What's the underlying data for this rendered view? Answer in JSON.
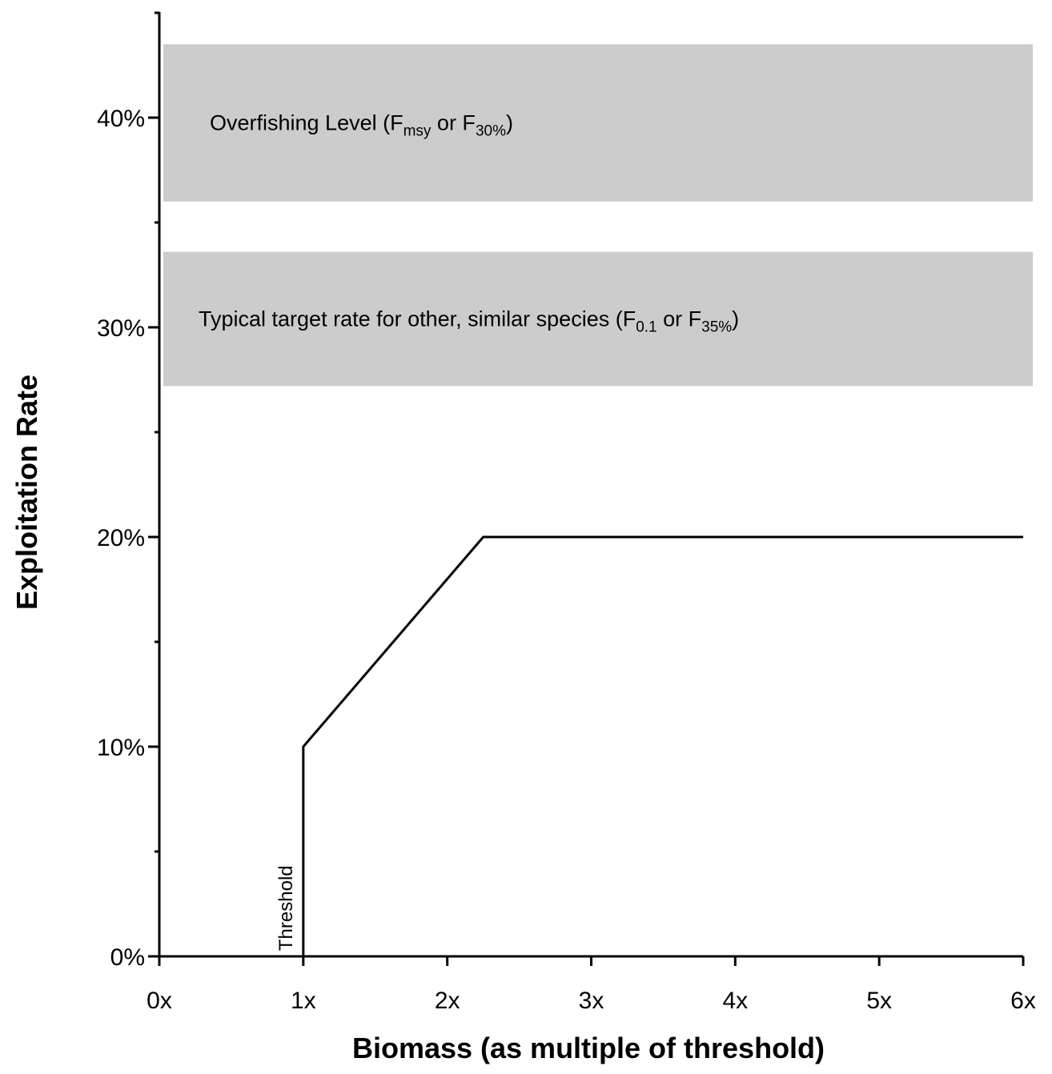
{
  "chart_data": {
    "type": "line",
    "xlabel": "Biomass (as multiple of threshold)",
    "ylabel": "Exploitation Rate",
    "x_ticks": [
      "0x",
      "1x",
      "2x",
      "3x",
      "4x",
      "5x",
      "6x"
    ],
    "x_tick_values": [
      0,
      1,
      2,
      3,
      4,
      5,
      6
    ],
    "y_ticks": [
      "0%",
      "10%",
      "20%",
      "30%",
      "40%"
    ],
    "y_tick_values": [
      0,
      10,
      20,
      30,
      40
    ],
    "y_minor_ticks": [
      5,
      15,
      25,
      35,
      45
    ],
    "xlim": [
      0,
      6
    ],
    "ylim": [
      0,
      45
    ],
    "grid": false,
    "series": [
      {
        "x": [
          1,
          1,
          2.25,
          6
        ],
        "y": [
          0,
          10,
          20,
          20
        ],
        "color": "#000000"
      }
    ],
    "bands": [
      {
        "y_range": [
          36,
          43.5
        ],
        "color": "#cccccc",
        "label_parts": [
          {
            "text": "Overfishing Level (F"
          },
          {
            "text": "msy",
            "sub": true
          },
          {
            "text": " or F"
          },
          {
            "text": "30%",
            "sub": true
          },
          {
            "text": ")"
          }
        ]
      },
      {
        "y_range": [
          27.2,
          33.6
        ],
        "color": "#cccccc",
        "label_parts": [
          {
            "text": "Typical target rate for other, similar species (F"
          },
          {
            "text": "0.1",
            "sub": true
          },
          {
            "text": " or F"
          },
          {
            "text": "35%",
            "sub": true
          },
          {
            "text": ")"
          }
        ]
      }
    ],
    "annotations": [
      {
        "text": "Threshold",
        "x": 1,
        "y": 2.3,
        "orientation": "vertical"
      }
    ]
  }
}
